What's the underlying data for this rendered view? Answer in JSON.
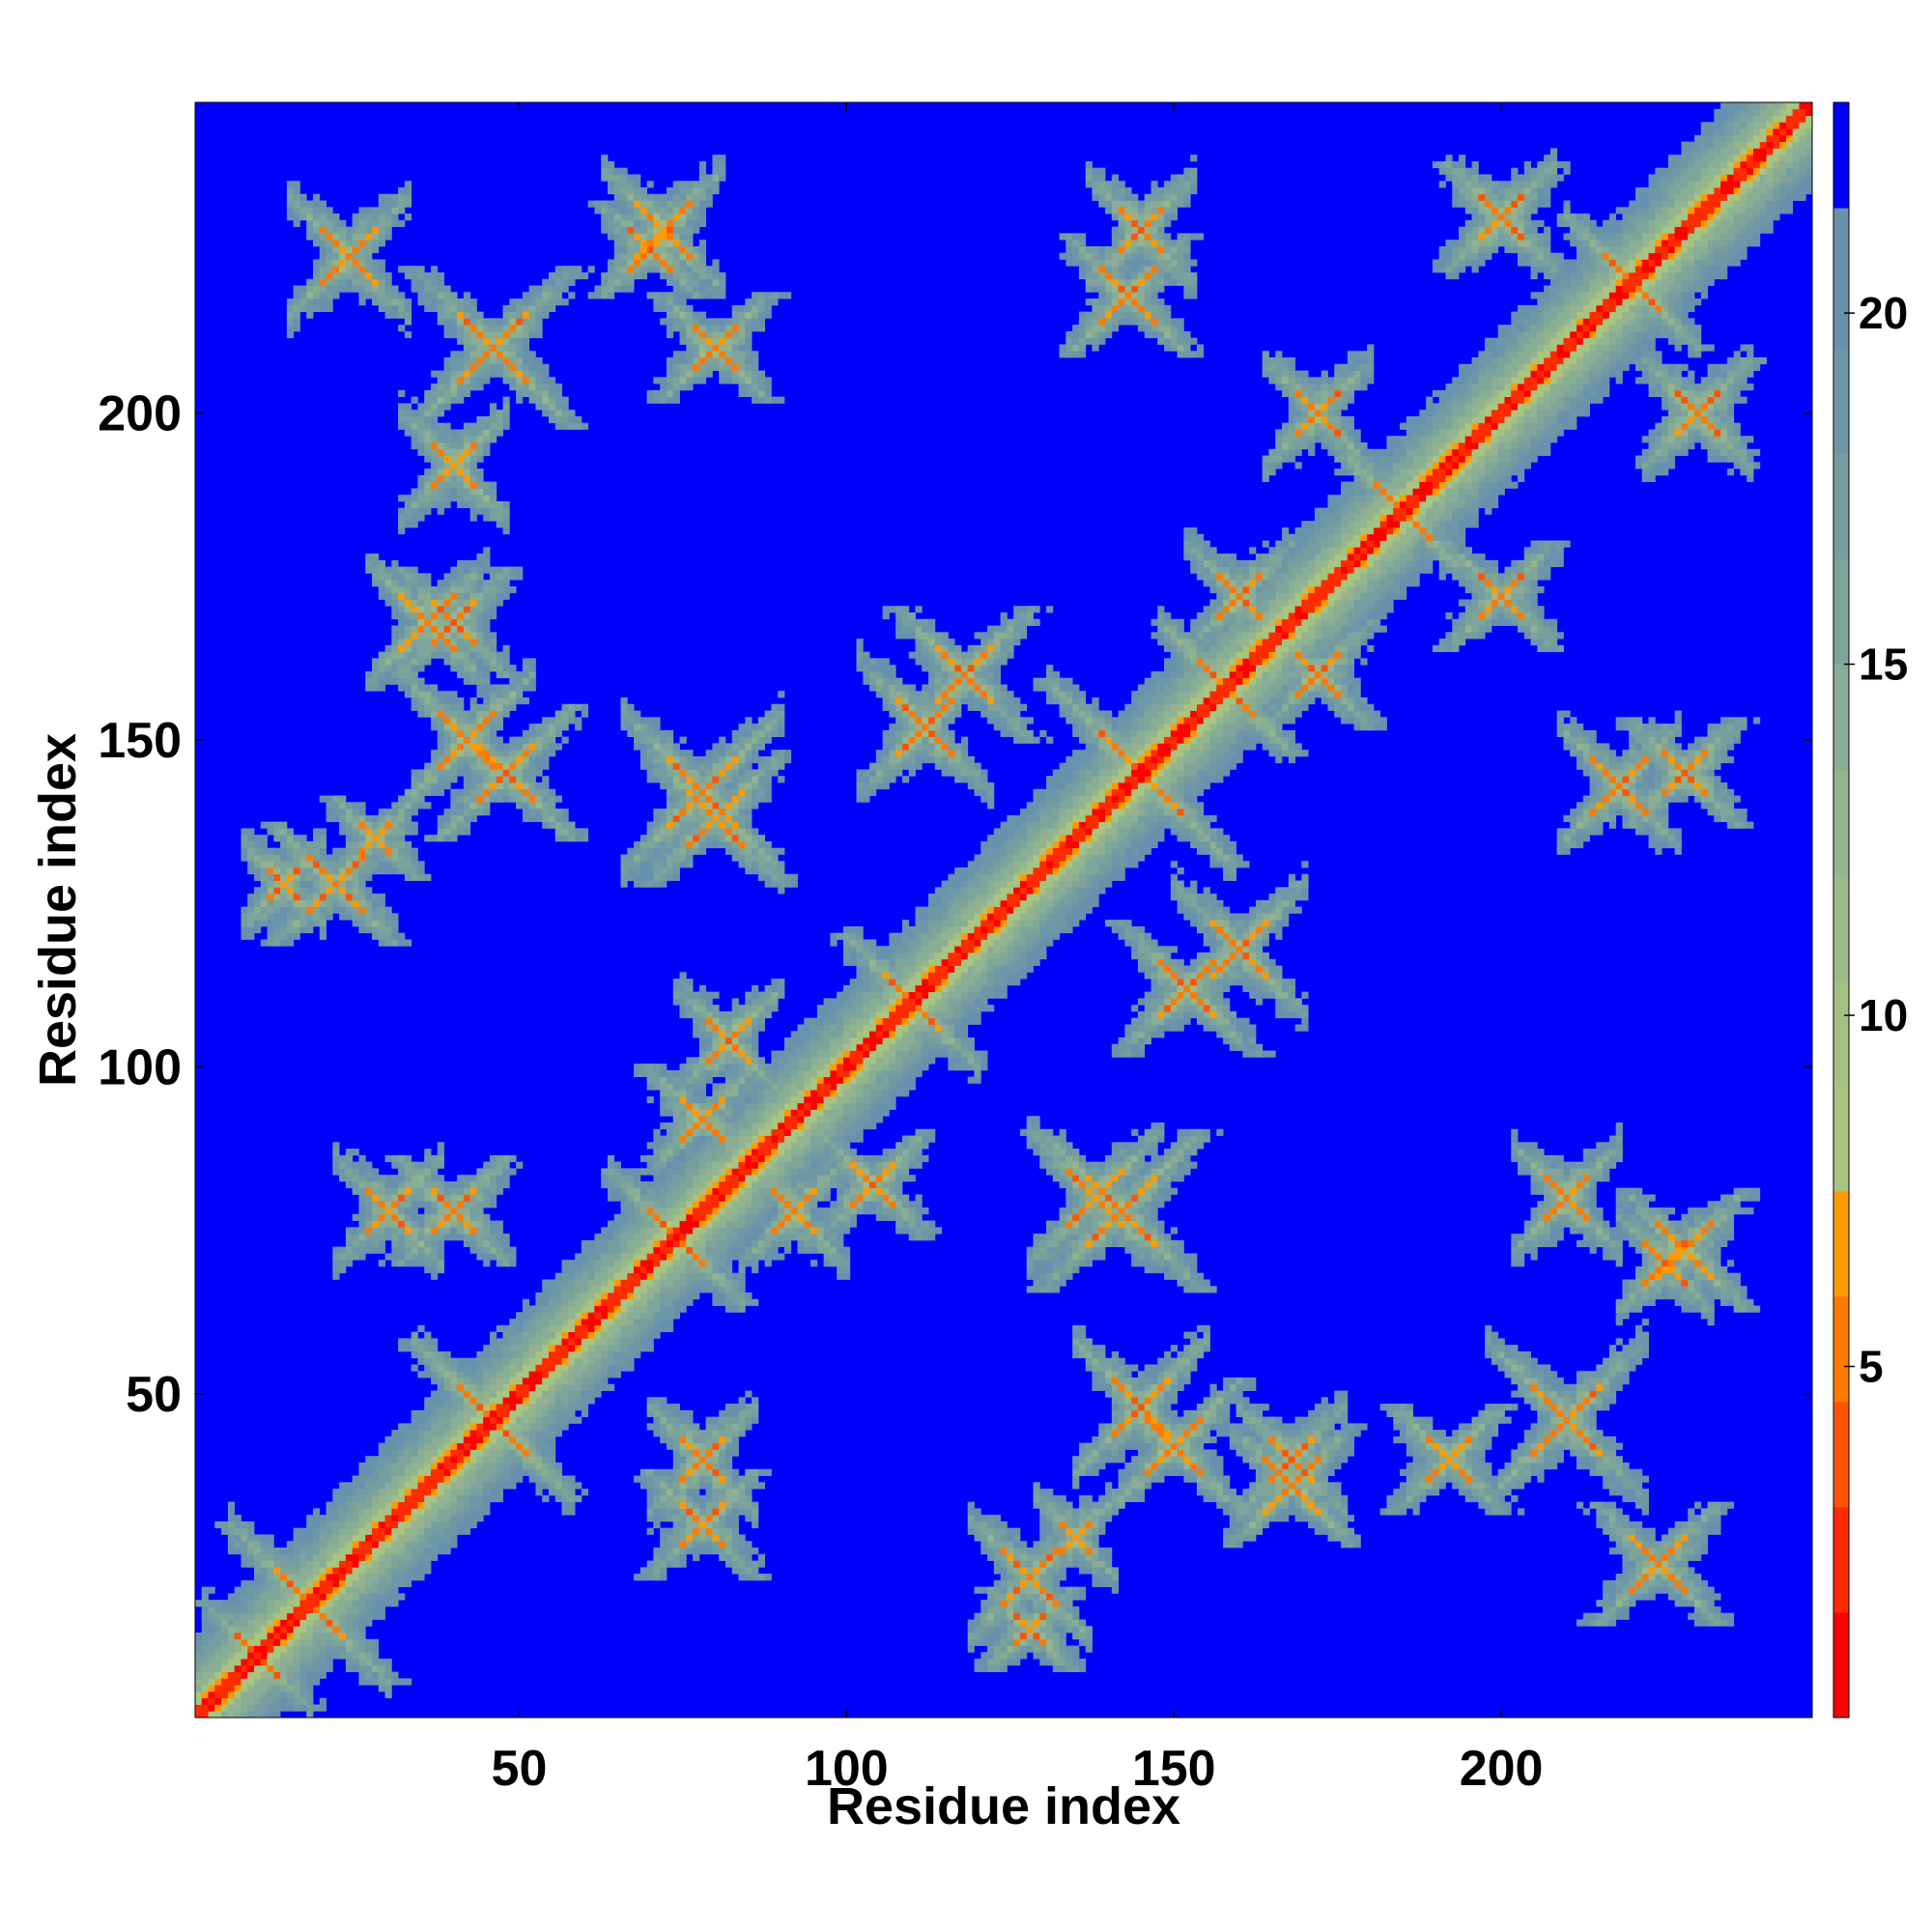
{
  "chart_data": {
    "type": "heatmap",
    "title": "",
    "xlabel": "Residue index",
    "ylabel": "Residue index",
    "n_residues": 247,
    "xlim": [
      0.5,
      247.5
    ],
    "ylim": [
      0.5,
      247.5
    ],
    "x_ticks": [
      50,
      100,
      150,
      200
    ],
    "y_ticks": [
      50,
      100,
      150,
      200
    ],
    "colorbar": {
      "min": 0,
      "max": 23,
      "ticks": [
        5,
        10,
        15,
        20
      ],
      "levels": [
        {
          "from": 0,
          "to": 1.5,
          "color": "#ff0000"
        },
        {
          "from": 1.5,
          "to": 3,
          "color": "#ff2a00"
        },
        {
          "from": 3,
          "to": 4.5,
          "color": "#ff5400"
        },
        {
          "from": 4.5,
          "to": 6,
          "color": "#ff7a00"
        },
        {
          "from": 6,
          "to": 7.5,
          "color": "#ff9a00"
        },
        {
          "from": 7.5,
          "to": 9,
          "color": "#a9c47f"
        },
        {
          "from": 9,
          "to": 10.5,
          "color": "#a4c184"
        },
        {
          "from": 10.5,
          "to": 12,
          "color": "#9dbb8a"
        },
        {
          "from": 12,
          "to": 13.5,
          "color": "#93b48f"
        },
        {
          "from": 13.5,
          "to": 15,
          "color": "#89ad95"
        },
        {
          "from": 15,
          "to": 16.5,
          "color": "#7fa59b"
        },
        {
          "from": 16.5,
          "to": 18,
          "color": "#769ea1"
        },
        {
          "from": 18,
          "to": 19.5,
          "color": "#6e98a7"
        },
        {
          "from": 19.5,
          "to": 21.5,
          "color": "#6891ad"
        },
        {
          "from": 21.5,
          "to": 23,
          "color": "#0000ff"
        }
      ]
    },
    "background_color": "#0000ff",
    "contact_features": [
      {
        "type": "helix_band",
        "x0": 1,
        "y0": 1,
        "x1": 247,
        "y1": 247,
        "core_distance": 1,
        "halfwidth": 7
      },
      {
        "type": "cross",
        "x": 46,
        "y": 46,
        "span": 12
      },
      {
        "type": "cross",
        "x": 74,
        "y": 74,
        "span": 10
      },
      {
        "type": "cross",
        "x": 145,
        "y": 145,
        "span": 14
      },
      {
        "type": "cross",
        "x": 158,
        "y": 158,
        "span": 10
      },
      {
        "type": "cross",
        "x": 220,
        "y": 220,
        "span": 10
      },
      {
        "type": "cross",
        "x": 24,
        "y": 224,
        "span": 9
      },
      {
        "type": "cross",
        "x": 72,
        "y": 228,
        "span": 9
      },
      {
        "type": "cross",
        "x": 145,
        "y": 228,
        "span": 8
      },
      {
        "type": "cross",
        "x": 42,
        "y": 150,
        "span": 10
      },
      {
        "type": "cross",
        "x": 78,
        "y": 142,
        "span": 12
      },
      {
        "type": "cross",
        "x": 112,
        "y": 152,
        "span": 10
      },
      {
        "type": "cross",
        "x": 218,
        "y": 143,
        "span": 9
      },
      {
        "type": "cross",
        "x": 138,
        "y": 80,
        "span": 10
      },
      {
        "type": "cross",
        "x": 145,
        "y": 48,
        "span": 10
      },
      {
        "type": "cross",
        "x": 168,
        "y": 40,
        "span": 8
      },
      {
        "type": "cross",
        "x": 210,
        "y": 46,
        "span": 12
      },
      {
        "type": "cross",
        "x": 128,
        "y": 22,
        "span": 9
      },
      {
        "type": "cross",
        "x": 78,
        "y": 40,
        "span": 8
      },
      {
        "type": "cross",
        "x": 110,
        "y": 110,
        "span": 10
      },
      {
        "type": "cross",
        "x": 160,
        "y": 118,
        "span": 10
      },
      {
        "type": "cross",
        "x": 210,
        "y": 80,
        "span": 8
      },
      {
        "type": "cross",
        "x": 185,
        "y": 185,
        "span": 10
      },
      {
        "type": "cross",
        "x": 200,
        "y": 230,
        "span": 8
      },
      {
        "type": "cross",
        "x": 36,
        "y": 168,
        "span": 9
      },
      {
        "type": "cross",
        "x": 40,
        "y": 192,
        "span": 8
      },
      {
        "type": "cross",
        "x": 30,
        "y": 78,
        "span": 8
      },
      {
        "type": "cross",
        "x": 92,
        "y": 78,
        "span": 8
      },
      {
        "type": "cross",
        "x": 230,
        "y": 200,
        "span": 8
      },
      {
        "type": "cross",
        "x": 172,
        "y": 200,
        "span": 8
      },
      {
        "type": "cross",
        "x": 160,
        "y": 172,
        "span": 8
      },
      {
        "type": "cross",
        "x": 14,
        "y": 128,
        "span": 6
      },
      {
        "type": "cross",
        "x": 225,
        "y": 70,
        "span": 7
      },
      {
        "type": "cross",
        "x": 82,
        "y": 104,
        "span": 8
      },
      {
        "type": "cross",
        "x": 135,
        "y": 28,
        "span": 6
      },
      {
        "type": "cross",
        "x": 18,
        "y": 18,
        "span": 12
      },
      {
        "type": "cross",
        "x": 10,
        "y": 10,
        "span": 8
      }
    ]
  }
}
